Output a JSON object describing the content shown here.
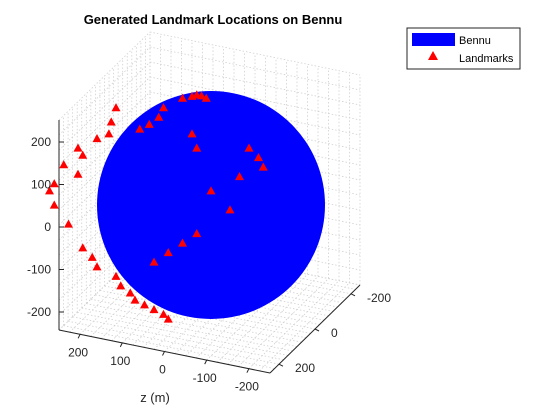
{
  "chart_data": {
    "type": "scatter",
    "subtype": "3d-sphere-with-landmarks",
    "title": "Generated Landmark Locations on Bennu",
    "zlabel": "z (m)",
    "vertical_axis": {
      "ticks": [
        200,
        100,
        0,
        -100,
        -200
      ],
      "tick_labels": [
        "200",
        "100",
        "0",
        "-100",
        "-200"
      ]
    },
    "z_axis": {
      "ticks": [
        200,
        100,
        0,
        -100,
        -200
      ],
      "tick_labels": [
        "200",
        "100",
        "0",
        "-100",
        "-200"
      ]
    },
    "right_axis": {
      "ticks": [
        -200,
        0,
        200
      ],
      "tick_labels": [
        "-200",
        "0",
        "200"
      ]
    },
    "grid": true,
    "legend": {
      "placement": "top-right",
      "entries": [
        {
          "label": "Bennu",
          "marker": "patch",
          "color": "#0000ff"
        },
        {
          "label": "Landmarks",
          "marker": "triangle",
          "color": "#ff0000"
        }
      ]
    },
    "sphere": {
      "name": "Bennu",
      "color": "#0000ff"
    },
    "landmarks": {
      "name": "Landmarks",
      "color": "#ff0000",
      "points": [
        [
          -10,
          225
        ],
        [
          -20,
          230
        ],
        [
          -30,
          232
        ],
        [
          -40,
          229
        ],
        [
          -60,
          225
        ],
        [
          -100,
          205
        ],
        [
          -110,
          185
        ],
        [
          -130,
          170
        ],
        [
          -150,
          160
        ],
        [
          -200,
          205
        ],
        [
          -210,
          175
        ],
        [
          -215,
          150
        ],
        [
          -240,
          140
        ],
        [
          -280,
          120
        ],
        [
          -270,
          105
        ],
        [
          -310,
          85
        ],
        [
          -280,
          65
        ],
        [
          -330,
          45
        ],
        [
          -340,
          30
        ],
        [
          -330,
          0
        ],
        [
          -300,
          -40
        ],
        [
          -270,
          -90
        ],
        [
          -250,
          -110
        ],
        [
          -240,
          -130
        ],
        [
          -200,
          -150
        ],
        [
          -190,
          -170
        ],
        [
          -170,
          -185
        ],
        [
          -160,
          -200
        ],
        [
          -140,
          -210
        ],
        [
          -120,
          -220
        ],
        [
          -100,
          -230
        ],
        [
          -90,
          -240
        ],
        [
          -40,
          150
        ],
        [
          -30,
          120
        ],
        [
          0,
          30
        ],
        [
          40,
          -10
        ],
        [
          60,
          60
        ],
        [
          80,
          120
        ],
        [
          100,
          100
        ],
        [
          110,
          80
        ],
        [
          -120,
          -120
        ],
        [
          -90,
          -100
        ],
        [
          -60,
          -80
        ],
        [
          -30,
          -60
        ]
      ]
    }
  }
}
